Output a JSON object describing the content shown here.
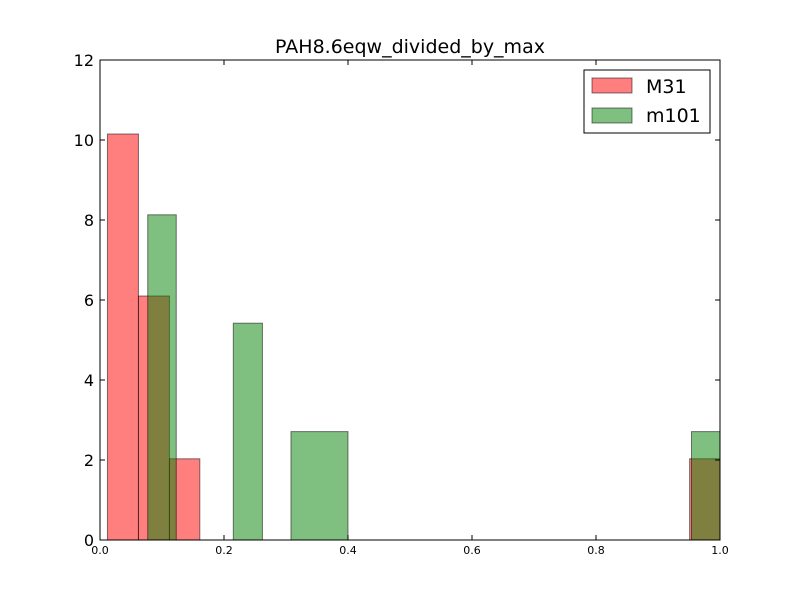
{
  "chart_data": {
    "type": "histogram",
    "title": "PAH8.6eqw_divided_by_max",
    "xlabel": "",
    "ylabel": "",
    "xlim": [
      0,
      1.0
    ],
    "ylim": [
      0,
      12
    ],
    "grid": false,
    "legend_position": "top-right",
    "x_ticks": [
      "0.0",
      "0.2",
      "0.4",
      "0.6",
      "0.8",
      "1.0"
    ],
    "y_ticks": [
      "0",
      "2",
      "4",
      "6",
      "8",
      "10",
      "12"
    ],
    "series": [
      {
        "name": "M31",
        "color": "#ff0000",
        "alpha": 0.5,
        "bins": [
          {
            "x0": 0.012,
            "x1": 0.062,
            "count": 10.15
          },
          {
            "x0": 0.062,
            "x1": 0.112,
            "count": 6.1
          },
          {
            "x0": 0.112,
            "x1": 0.161,
            "count": 2.03
          },
          {
            "x0": 0.951,
            "x1": 1.0,
            "count": 2.03
          }
        ]
      },
      {
        "name": "m101",
        "color": "#008000",
        "alpha": 0.5,
        "bins": [
          {
            "x0": 0.077,
            "x1": 0.123,
            "count": 8.13
          },
          {
            "x0": 0.215,
            "x1": 0.262,
            "count": 5.42
          },
          {
            "x0": 0.308,
            "x1": 0.4,
            "count": 2.71
          },
          {
            "x0": 0.954,
            "x1": 1.0,
            "count": 2.71
          }
        ]
      }
    ]
  }
}
